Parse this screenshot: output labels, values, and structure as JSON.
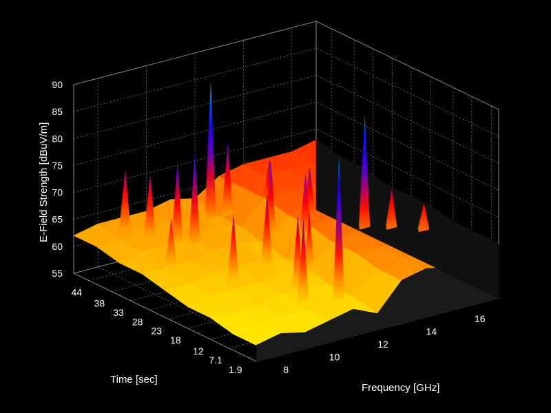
{
  "chart_data": {
    "type": "surface",
    "title": "",
    "xlabel": "Frequency [GHz]",
    "ylabel": "Time [sec]",
    "zlabel": "E-Field Strength [dBuV/m]",
    "x_ticks": [
      "8",
      "10",
      "12",
      "14",
      "16"
    ],
    "x_tick_values": [
      8,
      10,
      12,
      14,
      16
    ],
    "y_ticks": [
      "1.9",
      "7.1",
      "12",
      "18",
      "23",
      "28",
      "33",
      "38",
      "44"
    ],
    "y_tick_values": [
      1.9,
      7.1,
      12,
      18,
      23,
      28,
      33,
      38,
      44
    ],
    "z_ticks": [
      "55",
      "60",
      "65",
      "70",
      "75",
      "80",
      "85",
      "90"
    ],
    "z_tick_values": [
      55,
      60,
      65,
      70,
      75,
      80,
      85,
      90
    ],
    "xlim": [
      7,
      17
    ],
    "ylim": [
      0,
      48
    ],
    "zlim": [
      55,
      90
    ],
    "grid": true,
    "colormap": [
      "#ffff00",
      "#ff9900",
      "#ff0000",
      "#5a00cc",
      "#0000ff",
      "#00ffff"
    ],
    "background": "#000000",
    "surface_floor": {
      "grid_x": [
        7,
        8,
        9,
        10,
        11,
        12,
        13,
        14,
        15,
        16,
        17
      ],
      "grid_y": [
        0,
        6,
        12,
        18,
        24,
        30,
        36,
        42,
        48
      ],
      "z": [
        [
          58,
          59,
          58,
          59,
          60,
          58,
          63,
          64,
          63,
          64,
          65
        ],
        [
          58,
          59,
          59,
          59,
          60,
          59,
          63,
          64,
          64,
          64,
          65
        ],
        [
          59,
          59,
          59,
          60,
          60,
          59,
          64,
          64,
          64,
          65,
          65
        ],
        [
          59,
          60,
          60,
          60,
          61,
          60,
          64,
          65,
          65,
          65,
          66
        ],
        [
          60,
          60,
          61,
          61,
          61,
          60,
          65,
          65,
          65,
          66,
          66
        ],
        [
          61,
          61,
          61,
          62,
          62,
          61,
          65,
          66,
          66,
          66,
          66
        ],
        [
          61,
          62,
          62,
          62,
          63,
          62,
          66,
          66,
          66,
          67,
          67
        ],
        [
          62,
          62,
          63,
          63,
          63,
          62,
          66,
          67,
          67,
          67,
          67
        ],
        [
          62,
          63,
          63,
          63,
          64,
          63,
          66,
          67,
          67,
          67,
          68
        ]
      ]
    },
    "peaks": [
      {
        "x": 11.2,
        "y": 5,
        "z": 86
      },
      {
        "x": 11.4,
        "y": 40,
        "z": 88
      },
      {
        "x": 14.3,
        "y": 18,
        "z": 86
      },
      {
        "x": 9.8,
        "y": 34,
        "z": 79
      },
      {
        "x": 9.4,
        "y": 36,
        "z": 77
      },
      {
        "x": 8.9,
        "y": 40,
        "z": 74
      },
      {
        "x": 8.5,
        "y": 44,
        "z": 74
      },
      {
        "x": 10.2,
        "y": 8,
        "z": 75
      },
      {
        "x": 10.6,
        "y": 12,
        "z": 74
      },
      {
        "x": 12.3,
        "y": 30,
        "z": 76
      },
      {
        "x": 12.8,
        "y": 24,
        "z": 75
      },
      {
        "x": 13.6,
        "y": 28,
        "z": 74
      },
      {
        "x": 15.1,
        "y": 16,
        "z": 72
      },
      {
        "x": 15.8,
        "y": 12,
        "z": 70
      },
      {
        "x": 9.2,
        "y": 20,
        "z": 73
      },
      {
        "x": 10.9,
        "y": 22,
        "z": 74
      },
      {
        "x": 12.1,
        "y": 40,
        "z": 76
      },
      {
        "x": 13.2,
        "y": 36,
        "z": 73
      },
      {
        "x": 8.2,
        "y": 30,
        "z": 70
      },
      {
        "x": 11.7,
        "y": 16,
        "z": 72
      }
    ]
  }
}
